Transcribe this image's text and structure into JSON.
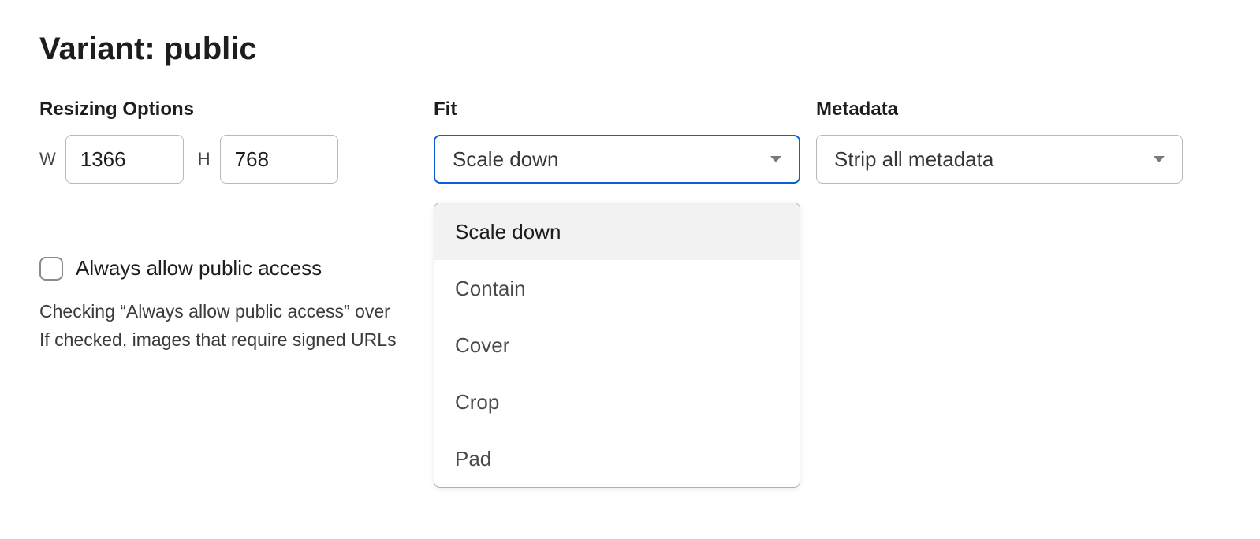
{
  "title": "Variant: public",
  "resizing": {
    "label": "Resizing Options",
    "width_letter": "W",
    "height_letter": "H",
    "width_value": "1366",
    "height_value": "768"
  },
  "fit": {
    "label": "Fit",
    "selected": "Scale down",
    "options": [
      "Scale down",
      "Contain",
      "Cover",
      "Crop",
      "Pad"
    ]
  },
  "metadata": {
    "label": "Metadata",
    "selected": "Strip all metadata"
  },
  "public_access": {
    "checkbox_label": "Always allow public access",
    "checked": false,
    "help_line1": "Checking “Always allow public access” over",
    "help_line2": "If checked, images that require signed URLs"
  },
  "colors": {
    "text_primary": "#1d1d1d",
    "text_secondary": "#4a4a4a",
    "border": "#b8b8b8",
    "focus_border": "#0b5fd6",
    "hover_bg": "#f2f2f2",
    "background": "#ffffff"
  }
}
